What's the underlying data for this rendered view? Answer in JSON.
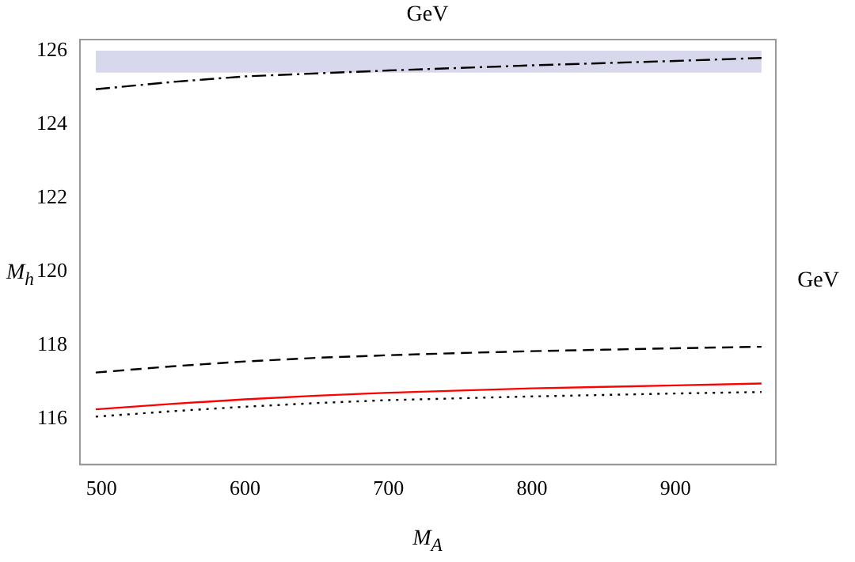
{
  "chart_data": {
    "type": "line",
    "xlabel": "M$_{A}$",
    "ylabel": "M$_{h}$",
    "annotations": [
      "GeV",
      "GeV"
    ],
    "xlim": [
      485,
      970
    ],
    "xticks": [
      500,
      600,
      700,
      800,
      900
    ],
    "ylim": [
      114.75,
      126.3
    ],
    "yticks": [
      116,
      118,
      120,
      122,
      124,
      126
    ],
    "grid": false,
    "legend": false,
    "marker": "none",
    "bands": [
      {
        "axis": "y",
        "from": 125.4,
        "to": 126.0,
        "color": "#d8d8ec"
      }
    ],
    "series": [
      {
        "color": "#000000",
        "line_style": "dashdot",
        "x": [
          496,
          550,
          600,
          650,
          700,
          750,
          800,
          850,
          900,
          960
        ],
        "values": [
          124.95,
          125.15,
          125.3,
          125.38,
          125.46,
          125.53,
          125.6,
          125.66,
          125.72,
          125.8
        ]
      },
      {
        "color": "#000000",
        "line_style": "dashed",
        "x": [
          496,
          550,
          600,
          650,
          700,
          750,
          800,
          850,
          900,
          960
        ],
        "values": [
          117.25,
          117.42,
          117.55,
          117.65,
          117.72,
          117.78,
          117.83,
          117.87,
          117.91,
          117.95
        ]
      },
      {
        "color": "#ff0000",
        "line_style": "solid",
        "x": [
          496,
          550,
          600,
          650,
          700,
          750,
          800,
          850,
          900,
          960
        ],
        "values": [
          116.25,
          116.4,
          116.52,
          116.62,
          116.7,
          116.76,
          116.82,
          116.86,
          116.9,
          116.95
        ]
      },
      {
        "color": "#000000",
        "line_style": "dotted",
        "x": [
          496,
          550,
          600,
          650,
          700,
          750,
          800,
          850,
          900,
          960
        ],
        "values": [
          116.05,
          116.2,
          116.32,
          116.42,
          116.5,
          116.55,
          116.6,
          116.64,
          116.68,
          116.72
        ]
      }
    ]
  }
}
